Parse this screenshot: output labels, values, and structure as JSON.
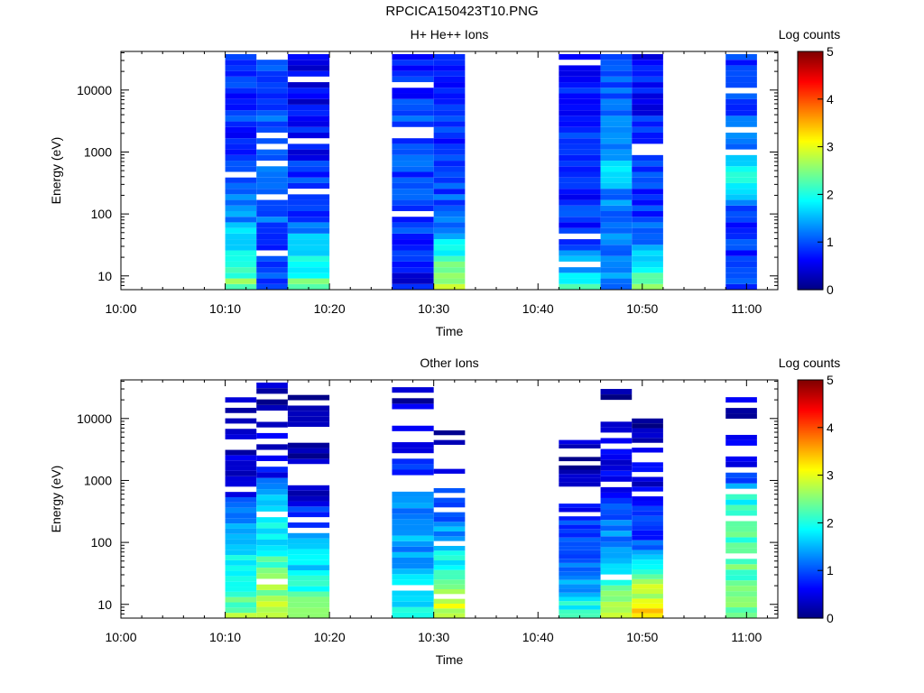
{
  "page_title": "RPCICA150423T10.PNG",
  "panels": [
    {
      "title": "H+ He++ Ions",
      "ylabel": "Energy (eV)",
      "xlabel": "Time",
      "cbar_label": "Log counts"
    },
    {
      "title": "Other Ions",
      "ylabel": "Energy (eV)",
      "xlabel": "Time",
      "cbar_label": "Log counts"
    }
  ],
  "colors": {
    "jet": [
      "#000080",
      "#0000ff",
      "#0080ff",
      "#00ffff",
      "#80ff80",
      "#ffff00",
      "#ff8000",
      "#ff0000",
      "#800000"
    ]
  },
  "chart_data": [
    {
      "type": "heatmap",
      "title": "H+ He++ Ions",
      "xlabel": "Time",
      "ylabel": "Energy (eV)",
      "y_scale": "log",
      "ylim": [
        6,
        42000
      ],
      "xlim": [
        "10:00",
        "11:03"
      ],
      "x_ticks": [
        "10:00",
        "10:10",
        "10:20",
        "10:30",
        "10:40",
        "10:50",
        "11:00"
      ],
      "y_ticks": [
        10,
        100,
        1000,
        10000
      ],
      "colorbar": {
        "label": "Log counts",
        "range": [
          0,
          5
        ],
        "ticks": [
          0,
          1,
          2,
          3,
          4,
          5
        ]
      },
      "blocks": [
        {
          "start": "10:10",
          "end": "10:13",
          "top_energy": 38000,
          "profile": [
            [
              6,
              2.6
            ],
            [
              12,
              2.2
            ],
            [
              30,
              1.8
            ],
            [
              100,
              1.2
            ],
            [
              1000,
              0.9
            ],
            [
              38000,
              0.7
            ]
          ]
        },
        {
          "start": "10:13",
          "end": "10:16",
          "top_energy": 38000,
          "profile": [
            [
              6,
              1.1
            ],
            [
              20,
              0.8
            ],
            [
              100,
              1.2
            ],
            [
              1000,
              1.3
            ],
            [
              38000,
              0.8
            ]
          ]
        },
        {
          "start": "10:16",
          "end": "10:20",
          "top_energy": 38000,
          "profile": [
            [
              6,
              2.5
            ],
            [
              12,
              2.0
            ],
            [
              30,
              1.6
            ],
            [
              100,
              1.0
            ],
            [
              1000,
              0.7
            ],
            [
              38000,
              0.5
            ]
          ]
        },
        {
          "start": "10:26",
          "end": "10:30",
          "top_energy": 38000,
          "profile": [
            [
              6,
              0.6
            ],
            [
              25,
              0.7
            ],
            [
              100,
              1.0
            ],
            [
              1000,
              1.0
            ],
            [
              38000,
              0.8
            ]
          ]
        },
        {
          "start": "10:30",
          "end": "10:33",
          "top_energy": 38000,
          "profile": [
            [
              6,
              2.9
            ],
            [
              12,
              2.5
            ],
            [
              30,
              1.7
            ],
            [
              100,
              1.0
            ],
            [
              1000,
              0.9
            ],
            [
              38000,
              0.7
            ]
          ]
        },
        {
          "start": "10:42",
          "end": "10:46",
          "top_energy": 38000,
          "profile": [
            [
              6,
              2.2
            ],
            [
              12,
              1.6
            ],
            [
              30,
              1.0
            ],
            [
              100,
              0.8
            ],
            [
              1000,
              0.9
            ],
            [
              38000,
              0.6
            ]
          ]
        },
        {
          "start": "10:46",
          "end": "10:49",
          "top_energy": 38000,
          "profile": [
            [
              6,
              1.3
            ],
            [
              100,
              1.1
            ],
            [
              600,
              1.6
            ],
            [
              1000,
              1.3
            ],
            [
              38000,
              0.8
            ]
          ]
        },
        {
          "start": "10:49",
          "end": "10:52",
          "top_energy": 38000,
          "profile": [
            [
              6,
              2.6
            ],
            [
              12,
              2.0
            ],
            [
              30,
              1.3
            ],
            [
              100,
              0.9
            ],
            [
              1000,
              0.8
            ],
            [
              38000,
              0.6
            ]
          ]
        },
        {
          "start": "10:58",
          "end": "11:01",
          "top_energy": 38000,
          "profile": [
            [
              6,
              1.0
            ],
            [
              100,
              0.8
            ],
            [
              450,
              2.2
            ],
            [
              1000,
              1.2
            ],
            [
              38000,
              0.8
            ]
          ]
        }
      ]
    },
    {
      "type": "heatmap",
      "title": "Other Ions",
      "xlabel": "Time",
      "ylabel": "Energy (eV)",
      "y_scale": "log",
      "ylim": [
        6,
        42000
      ],
      "xlim": [
        "10:00",
        "11:03"
      ],
      "x_ticks": [
        "10:00",
        "10:10",
        "10:20",
        "10:30",
        "10:40",
        "10:50",
        "11:00"
      ],
      "y_ticks": [
        10,
        100,
        1000,
        10000
      ],
      "colorbar": {
        "label": "Log counts",
        "range": [
          0,
          5
        ],
        "ticks": [
          0,
          1,
          2,
          3,
          4,
          5
        ]
      },
      "blocks": [
        {
          "start": "10:10",
          "end": "10:13",
          "top_energy": 22000,
          "profile": [
            [
              6,
              2.6
            ],
            [
              20,
              2.1
            ],
            [
              100,
              1.7
            ],
            [
              300,
              1.2
            ],
            [
              1000,
              0.4
            ],
            [
              22000,
              0.2
            ]
          ]
        },
        {
          "start": "10:13",
          "end": "10:16",
          "top_energy": 38000,
          "profile": [
            [
              6,
              3.0
            ],
            [
              15,
              2.6
            ],
            [
              100,
              1.9
            ],
            [
              600,
              1.5
            ],
            [
              1500,
              0.5
            ],
            [
              38000,
              0.2
            ]
          ]
        },
        {
          "start": "10:16",
          "end": "10:20",
          "top_energy": 24000,
          "profile": [
            [
              6,
              2.6
            ],
            [
              20,
              2.0
            ],
            [
              100,
              1.4
            ],
            [
              300,
              0.8
            ],
            [
              1000,
              0.3
            ],
            [
              24000,
              0.1
            ]
          ]
        },
        {
          "start": "10:26",
          "end": "10:30",
          "top_energy": 32000,
          "profile": [
            [
              6,
              2.2
            ],
            [
              12,
              1.8
            ],
            [
              100,
              1.4
            ],
            [
              1000,
              1.0
            ],
            [
              32000,
              0.2
            ]
          ]
        },
        {
          "start": "10:30",
          "end": "10:33",
          "top_energy": 11000,
          "profile": [
            [
              6,
              3.0
            ],
            [
              20,
              2.5
            ],
            [
              100,
              1.5
            ],
            [
              1000,
              0.7
            ],
            [
              11000,
              0.2
            ]
          ]
        },
        {
          "start": "10:42",
          "end": "10:46",
          "top_energy": 4500,
          "profile": [
            [
              6,
              2.4
            ],
            [
              15,
              1.5
            ],
            [
              100,
              1.0
            ],
            [
              1000,
              0.4
            ],
            [
              4500,
              0.2
            ]
          ]
        },
        {
          "start": "10:46",
          "end": "10:49",
          "top_energy": 30000,
          "profile": [
            [
              6,
              3.0
            ],
            [
              20,
              2.2
            ],
            [
              100,
              1.4
            ],
            [
              1000,
              0.6
            ],
            [
              30000,
              0.2
            ]
          ]
        },
        {
          "start": "10:49",
          "end": "10:52",
          "top_energy": 12000,
          "profile": [
            [
              6,
              3.3
            ],
            [
              20,
              2.7
            ],
            [
              100,
              1.0
            ],
            [
              1000,
              0.5
            ],
            [
              12000,
              0.2
            ]
          ]
        },
        {
          "start": "10:58",
          "end": "11:01",
          "top_energy": 27000,
          "profile": [
            [
              6,
              2.5
            ],
            [
              30,
              2.3
            ],
            [
              600,
              2.0
            ],
            [
              1500,
              0.5
            ],
            [
              27000,
              0.3
            ]
          ]
        }
      ]
    }
  ]
}
